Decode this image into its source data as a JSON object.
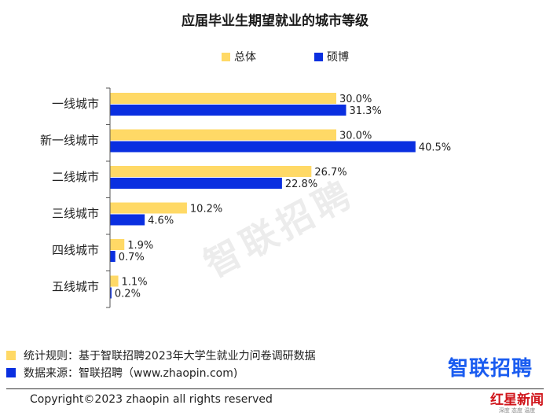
{
  "chart_data": {
    "type": "bar",
    "orientation": "horizontal",
    "title": "应届毕业生期望就业的城市等级",
    "categories": [
      "一线城市",
      "新一线城市",
      "二线城市",
      "三线城市",
      "四线城市",
      "五线城市"
    ],
    "series": [
      {
        "name": "总体",
        "color": "#FFD966",
        "values": [
          30.0,
          30.0,
          26.7,
          10.2,
          1.9,
          1.1
        ],
        "labels": [
          "30.0%",
          "30.0%",
          "26.7%",
          "10.2%",
          "1.9%",
          "1.1%"
        ]
      },
      {
        "name": "硕博",
        "color": "#0A2FE0",
        "values": [
          31.3,
          40.5,
          22.8,
          4.6,
          0.7,
          0.2
        ],
        "labels": [
          "31.3%",
          "40.5%",
          "22.8%",
          "4.6%",
          "0.7%",
          "0.2%"
        ]
      }
    ],
    "xlim": [
      0,
      45
    ],
    "legend_position": "top-center",
    "grid": false
  },
  "watermark": "智联招聘",
  "notes": [
    {
      "text": "统计规则：基于智联招聘2023年大学生就业力问卷调研数据",
      "color": "#FFD966"
    },
    {
      "text": "数据来源：智联招聘（www.zhaopin.com)",
      "color": "#0A2FE0"
    }
  ],
  "brand": "智联招聘",
  "copyright": "Copyright©2023 zhaopin all rights reserved",
  "publisher": {
    "name": "红星新闻",
    "sub": "深度 态度 温度"
  }
}
